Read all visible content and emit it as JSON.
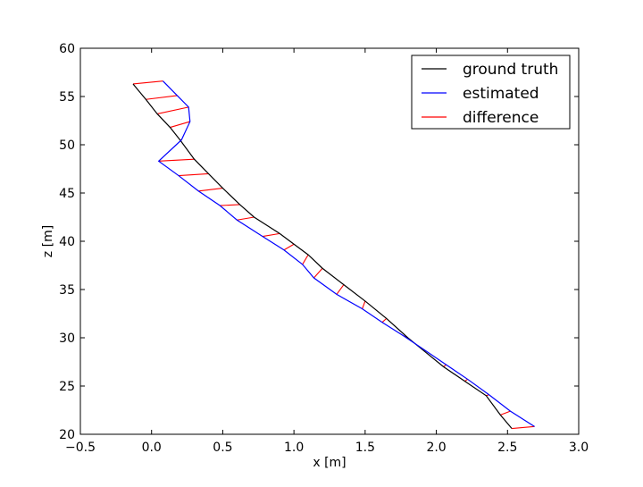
{
  "chart_data": {
    "type": "line",
    "title": "",
    "xlabel": "x [m]",
    "ylabel": "z [m]",
    "xlim": [
      -0.5,
      3.0
    ],
    "ylim": [
      20,
      60
    ],
    "xticks": [
      -0.5,
      0.0,
      0.5,
      1.0,
      1.5,
      2.0,
      2.5,
      3.0
    ],
    "xtick_labels": [
      "−0.5",
      "0.0",
      "0.5",
      "1.0",
      "1.5",
      "2.0",
      "2.5",
      "3.0"
    ],
    "yticks": [
      20,
      25,
      30,
      35,
      40,
      45,
      50,
      55,
      60
    ],
    "ytick_labels": [
      "20",
      "25",
      "30",
      "35",
      "40",
      "45",
      "50",
      "55",
      "60"
    ],
    "grid": false,
    "legend_position": "top-right",
    "series": [
      {
        "name": "ground truth",
        "color": "#000000",
        "points": [
          [
            -0.13,
            56.3
          ],
          [
            -0.04,
            54.7
          ],
          [
            0.04,
            53.2
          ],
          [
            0.13,
            51.8
          ],
          [
            0.2,
            50.5
          ],
          [
            0.3,
            48.5
          ],
          [
            0.4,
            47.0
          ],
          [
            0.5,
            45.5
          ],
          [
            0.62,
            43.8
          ],
          [
            0.72,
            42.5
          ],
          [
            0.9,
            40.8
          ],
          [
            1.0,
            39.7
          ],
          [
            1.1,
            38.6
          ],
          [
            1.2,
            37.2
          ],
          [
            1.35,
            35.5
          ],
          [
            1.5,
            33.8
          ],
          [
            1.65,
            32.0
          ],
          [
            1.8,
            30.0
          ],
          [
            1.9,
            28.8
          ],
          [
            2.05,
            27.0
          ],
          [
            2.2,
            25.5
          ],
          [
            2.35,
            24.0
          ],
          [
            2.45,
            22.0
          ],
          [
            2.53,
            20.6
          ]
        ]
      },
      {
        "name": "estimated",
        "color": "#0000ff",
        "points": [
          [
            0.08,
            56.6
          ],
          [
            0.18,
            55.1
          ],
          [
            0.26,
            53.9
          ],
          [
            0.27,
            52.4
          ],
          [
            0.21,
            50.5
          ],
          [
            0.05,
            48.3
          ],
          [
            0.19,
            46.8
          ],
          [
            0.33,
            45.2
          ],
          [
            0.48,
            43.7
          ],
          [
            0.6,
            42.2
          ],
          [
            0.78,
            40.5
          ],
          [
            0.93,
            39.1
          ],
          [
            1.06,
            37.6
          ],
          [
            1.14,
            36.2
          ],
          [
            1.3,
            34.5
          ],
          [
            1.48,
            33.0
          ],
          [
            1.62,
            31.6
          ],
          [
            1.77,
            30.2
          ],
          [
            1.92,
            28.7
          ],
          [
            2.07,
            27.2
          ],
          [
            2.22,
            25.7
          ],
          [
            2.37,
            24.1
          ],
          [
            2.52,
            22.4
          ],
          [
            2.69,
            20.8
          ]
        ]
      },
      {
        "name": "difference",
        "color": "#ff0000"
      }
    ]
  }
}
